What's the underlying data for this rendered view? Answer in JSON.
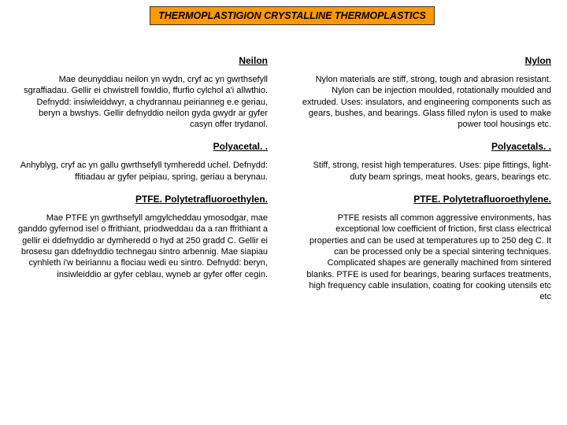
{
  "title": "THERMOPLASTIGION CRYSTALLINE THERMOPLASTICS",
  "colors": {
    "title_bg": "#ff9900",
    "title_border": "#333333",
    "page_bg": "#ffffff",
    "text": "#000000"
  },
  "fonts": {
    "title_size": 12.5,
    "heading_size": 12,
    "body_size": 11
  },
  "left": {
    "h1": "Neilon",
    "p1": "Mae deunyddiau neilon yn wydn, cryf ac yn gwrthsefyll sgraffiadau. Gellir ei chwistrell fowldio, ffurfio cylchol a'i allwthio. Defnydd: insiwleiddwyr, a chydrannau peirianneg e.e geriau, beryn a bwshys. Gellir defnyddio neilon gyda gwydr ar gyfer casyn offer trydanol.",
    "h2": "Polyacetal. .",
    "p2": "Anhyblyg, cryf ac yn gallu gwrthsefyll tymheredd uchel. Defnydd: ffitiadau ar gyfer peipiau, spring, geriau a berynau.",
    "h3": "PTFE. Polytetrafluoroethylen.",
    "p3": "Mae PTFE yn gwrthsefyll amgylcheddau ymosodgar, mae ganddo gyfernod isel o ffrithiant, priodweddau da a ran ffrithiant a gellir ei ddefnyddio ar dymheredd o hyd at 250 gradd C. Gellir ei brosesu gan ddefnyddio technegau sintro arbennig. Mae siapiau cynhleth i'w beiriannu a flociau wedi eu sintro. Defnydd: beryn, insiwleiddio ar gyfer ceblau, wyneb ar gyfer offer cegin."
  },
  "right": {
    "h1": "Nylon",
    "p1": "Nylon materials are stiff, strong, tough and abrasion resistant. Nylon can be injection moulded, rotationally moulded and extruded. Uses: insulators, and engineering components such as gears, bushes, and bearings. Glass filled nylon is used to make power tool housings etc.",
    "h2": "Polyacetals. .",
    "p2": "Stiff, strong, resist high temperatures. Uses: pipe fittings, light-duty beam springs, meat hooks, gears, bearings etc.",
    "h3": "PTFE. Polytetrafluoroethylene.",
    "p3": "PTFE resists all common aggressive environments, has exceptional low coefficient of friction, first class electrical properties and can be used at temperatures up to 250 deg C. It can be processed only be a special sintering techniques. Complicated shapes are generally machined from sintered blanks. PTFE is used for bearings, bearing surfaces treatments, high frequency cable insulation, coating for cooking utensils etc etc"
  }
}
